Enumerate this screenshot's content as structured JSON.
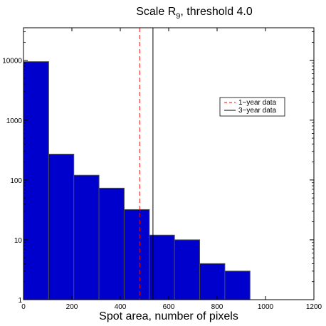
{
  "chart_data": {
    "type": "bar",
    "title_main": "Scale R",
    "title_sub": "9",
    "title_rest": ", threshold 4.0",
    "xlabel": "Spot area, number of pixels",
    "ylabel": "",
    "x_scale": "linear",
    "y_scale": "log",
    "xlim": [
      0,
      1200
    ],
    "ylim": [
      1,
      35000
    ],
    "xticks": [
      0,
      200,
      400,
      600,
      800,
      1000,
      1200
    ],
    "xtick_labels": [
      "0",
      "200",
      "400",
      "600",
      "800",
      "1000",
      "1200"
    ],
    "yticks": [
      1,
      10,
      100,
      1000,
      10000
    ],
    "ytick_labels": [
      "1",
      "10",
      "100",
      "1000",
      "10000"
    ],
    "bar_color": "#0000cc",
    "bar_edge_color": "#4d4d4d",
    "bins": [
      {
        "x0": 0,
        "x1": 104,
        "value": 9500
      },
      {
        "x0": 104,
        "x1": 208,
        "value": 270
      },
      {
        "x0": 208,
        "x1": 312,
        "value": 120
      },
      {
        "x0": 312,
        "x1": 416,
        "value": 73
      },
      {
        "x0": 416,
        "x1": 520,
        "value": 32
      },
      {
        "x0": 520,
        "x1": 624,
        "value": 12
      },
      {
        "x0": 624,
        "x1": 728,
        "value": 10
      },
      {
        "x0": 728,
        "x1": 832,
        "value": 4
      },
      {
        "x0": 832,
        "x1": 936,
        "value": 3
      }
    ],
    "reference_lines": [
      {
        "name": "1−year data",
        "x": 480,
        "color": "#ff0000",
        "style": "dashed"
      },
      {
        "name": "3−year data",
        "x": 535,
        "color": "#000000",
        "style": "solid"
      }
    ],
    "legend_position": "right",
    "grid": false
  }
}
